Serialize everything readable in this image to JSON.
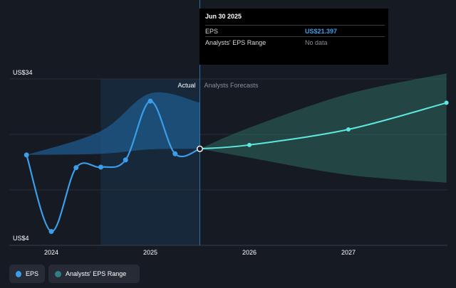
{
  "tooltip": {
    "date": "Jun 30 2025",
    "rows": [
      {
        "label": "EPS",
        "value": "US$21.397"
      },
      {
        "label": "Analysts' EPS Range",
        "value": "No data"
      }
    ]
  },
  "legend": {
    "eps_label": "EPS",
    "range_label": "Analysts' EPS Range"
  },
  "colors": {
    "background": "#161a23",
    "eps_line": "#3a9eea",
    "forecast_line": "#5ee8e0",
    "actual_band": "#1e5a8c",
    "forecast_band": "#2f6b60"
  },
  "chart_data": {
    "type": "line",
    "title": "",
    "xlabel": "",
    "ylabel": "",
    "ylim": [
      4,
      34
    ],
    "y_tick_labels": [
      {
        "value": 34,
        "label": "US$34"
      },
      {
        "value": 4,
        "label": "US$4"
      }
    ],
    "x_ticks": [
      {
        "value": 2024.0,
        "label": "2024"
      },
      {
        "value": 2025.0,
        "label": "2025"
      },
      {
        "value": 2026.0,
        "label": "2026"
      },
      {
        "value": 2027.0,
        "label": "2027"
      }
    ],
    "divider_x": 2025.5,
    "highlight_start_x": 2024.5,
    "section_labels": {
      "actual": "Actual",
      "forecast": "Analysts Forecasts"
    },
    "series": [
      {
        "name": "EPS",
        "x": [
          2023.75,
          2024.0,
          2024.25,
          2024.5,
          2024.75,
          2025.0,
          2025.25,
          2025.5
        ],
        "values": [
          20.3,
          6.5,
          18.0,
          18.1,
          19.4,
          30.0,
          20.5,
          21.4
        ]
      },
      {
        "name": "EPS Forecast",
        "x": [
          2025.5,
          2026.0,
          2027.0,
          2027.99
        ],
        "values": [
          21.4,
          22.1,
          24.9,
          29.7
        ]
      }
    ],
    "ranges": [
      {
        "name": "Analysts' EPS Range (actual period)",
        "x": [
          2023.75,
          2024.5,
          2025.0,
          2025.5
        ],
        "low": [
          20.3,
          20.5,
          21.3,
          21.4
        ],
        "high": [
          20.3,
          24.6,
          31.4,
          29.7
        ]
      },
      {
        "name": "Analysts' EPS Range (forecast)",
        "x": [
          2025.5,
          2026.0,
          2027.0,
          2027.99
        ],
        "low": [
          21.4,
          19.8,
          16.7,
          15.3
        ],
        "high": [
          21.4,
          25.2,
          31.3,
          35.0
        ]
      }
    ]
  }
}
